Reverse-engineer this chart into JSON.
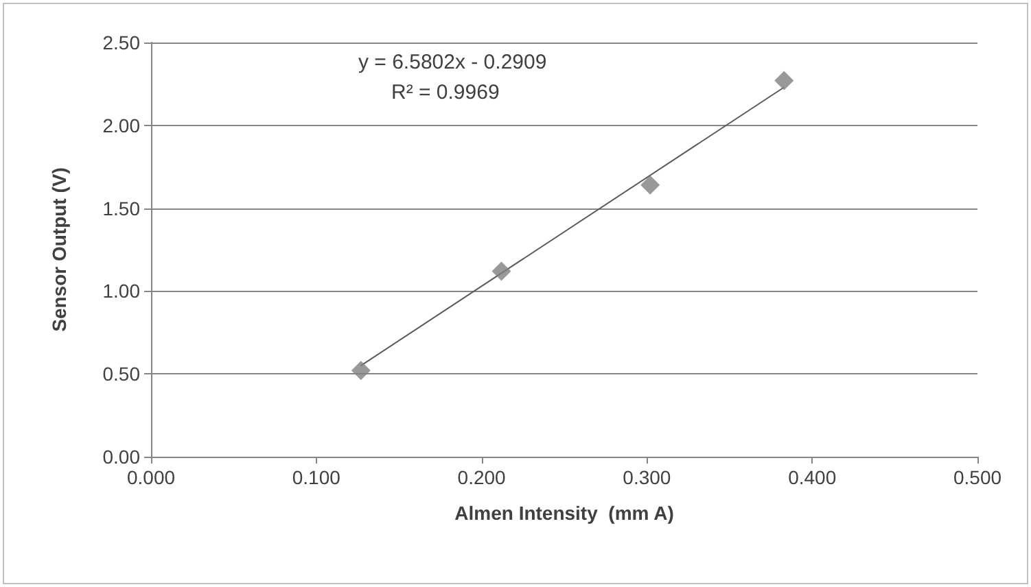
{
  "chart_data": {
    "type": "scatter",
    "xlabel": "Almen Intensity  (mm A)",
    "ylabel": "Sensor Output (V)",
    "xlim": [
      0,
      0.5
    ],
    "xticks": [
      {
        "value": 0,
        "label": "0.000"
      },
      {
        "value": 0.1,
        "label": "0.100"
      },
      {
        "value": 0.2,
        "label": "0.200"
      },
      {
        "value": 0.3,
        "label": "0.300"
      },
      {
        "value": 0.4,
        "label": "0.400"
      },
      {
        "value": 0.5,
        "label": "0.500"
      }
    ],
    "ylim": [
      0,
      2.5
    ],
    "yticks": [
      {
        "value": 0,
        "label": "0.00"
      },
      {
        "value": 0.5,
        "label": "0.50"
      },
      {
        "value": 1,
        "label": "1.00"
      },
      {
        "value": 1.5,
        "label": "1.50"
      },
      {
        "value": 2,
        "label": "2.00"
      },
      {
        "value": 2.5,
        "label": "2.50"
      }
    ],
    "grid": "y",
    "marker": "diamond",
    "series": [
      {
        "color": "#7f7f7f",
        "x": [
          0.127,
          0.212,
          0.302,
          0.383
        ],
        "values": [
          0.52,
          1.12,
          1.64,
          2.27
        ]
      },
      {
        "type": "line",
        "color": "#595959",
        "x": [
          0.127,
          0.383
        ],
        "values": [
          0.55,
          2.23
        ],
        "line_style": "solid",
        "marker": "none"
      }
    ],
    "annotations": [
      "y = 6.5802x - 0.2909",
      "R² = 0.9969"
    ]
  }
}
